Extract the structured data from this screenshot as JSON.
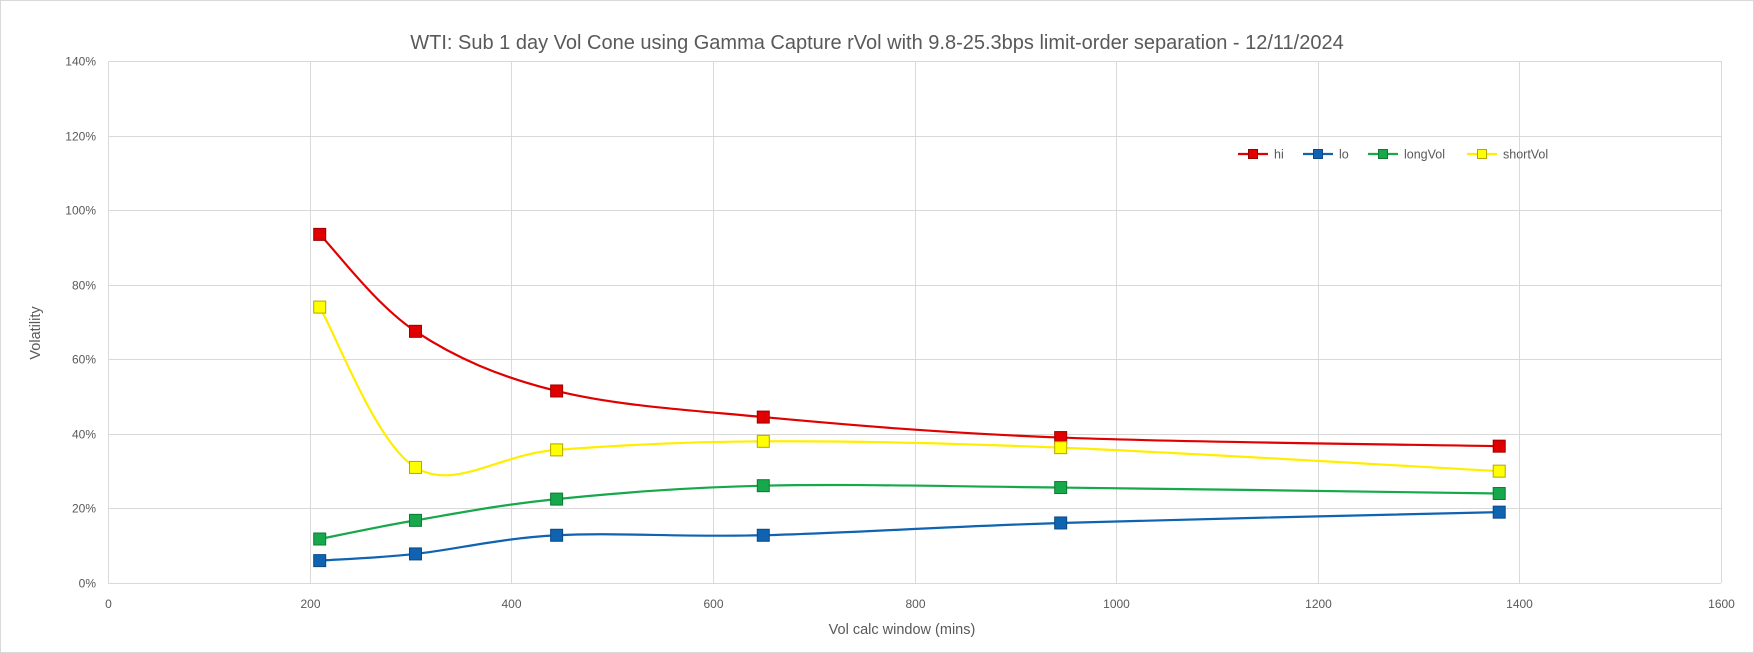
{
  "chart_data": {
    "type": "line",
    "title": "WTI: Sub 1 day Vol Cone using Gamma Capture rVol with 9.8-25.3bps limit-order separation - 12/11/2024",
    "xlabel": "Vol calc window (mins)",
    "ylabel": "Volatility",
    "xlim": [
      0,
      1600
    ],
    "ylim": [
      0,
      1.4
    ],
    "x_ticks": [
      0,
      200,
      400,
      600,
      800,
      1000,
      1200,
      1400,
      1600
    ],
    "y_ticks": [
      0,
      0.2,
      0.4,
      0.6,
      0.8,
      1.0,
      1.2,
      1.4
    ],
    "y_tick_labels": [
      "0%",
      "20%",
      "40%",
      "60%",
      "80%",
      "100%",
      "120%",
      "140%"
    ],
    "grid": true,
    "smoothed": true,
    "legend_position": "top-right",
    "x": [
      210,
      305,
      445,
      650,
      945,
      1380
    ],
    "series": [
      {
        "name": "hi",
        "color": "#e00000",
        "marker_fill": "#e00000",
        "marker_stroke": "#9b0000",
        "values": [
          0.935,
          0.675,
          0.515,
          0.445,
          0.39,
          0.367
        ]
      },
      {
        "name": "lo",
        "color": "#0f63b0",
        "marker_fill": "#0f63b0",
        "marker_stroke": "#0a4a85",
        "values": [
          0.06,
          0.078,
          0.128,
          0.128,
          0.161,
          0.19
        ]
      },
      {
        "name": "longVol",
        "color": "#16a84a",
        "marker_fill": "#16a84a",
        "marker_stroke": "#0e7a35",
        "values": [
          0.118,
          0.168,
          0.225,
          0.261,
          0.256,
          0.24
        ]
      },
      {
        "name": "shortVol",
        "color": "#ffee00",
        "marker_fill": "#ffff00",
        "marker_stroke": "#b3a600",
        "values": [
          0.74,
          0.31,
          0.357,
          0.38,
          0.363,
          0.3
        ]
      }
    ]
  }
}
